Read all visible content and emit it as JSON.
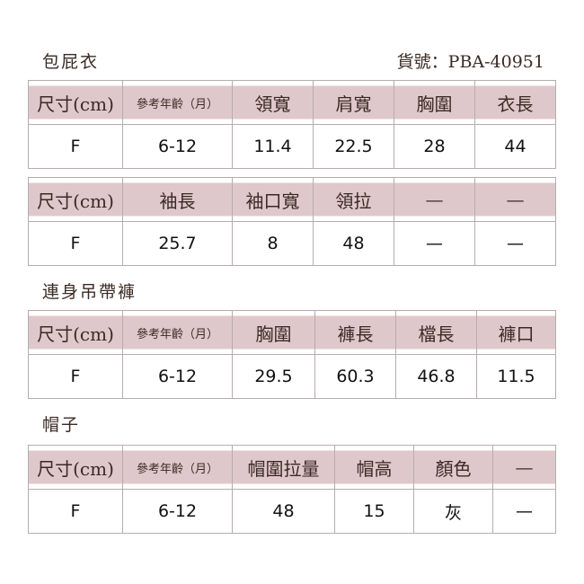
{
  "product_code": "貨號：PBA-40951",
  "sections": [
    {
      "title": "包屁衣",
      "tables": [
        {
          "headers": [
            "尺寸(cm)",
            "參考年齡（月）",
            "領寬",
            "肩寬",
            "胸圍",
            "衣長"
          ],
          "row": [
            "F",
            "6-12",
            "11.4",
            "22.5",
            "28",
            "44"
          ]
        },
        {
          "headers": [
            "尺寸(cm)",
            "袖長",
            "袖口寬",
            "領拉",
            "—",
            "—"
          ],
          "row": [
            "F",
            "25.7",
            "8",
            "48",
            "—",
            "—"
          ]
        }
      ]
    },
    {
      "title": "連身吊帶褲",
      "tables": [
        {
          "headers": [
            "尺寸(cm)",
            "參考年齡（月）",
            "胸圍",
            "褲長",
            "檔長",
            "褲口"
          ],
          "row": [
            "F",
            "6-12",
            "29.5",
            "60.3",
            "46.8",
            "11.5"
          ]
        }
      ]
    },
    {
      "title": "帽子",
      "tables": [
        {
          "headers": [
            "尺寸(cm)",
            "參考年齡（月）",
            "帽圍拉量",
            "帽高",
            "顏色",
            "—"
          ],
          "row": [
            "F",
            "6-12",
            "48",
            "15",
            "灰",
            "—"
          ]
        }
      ]
    }
  ],
  "colors": {
    "header_bg": "#dfc8cb",
    "border": "#b5adad"
  }
}
